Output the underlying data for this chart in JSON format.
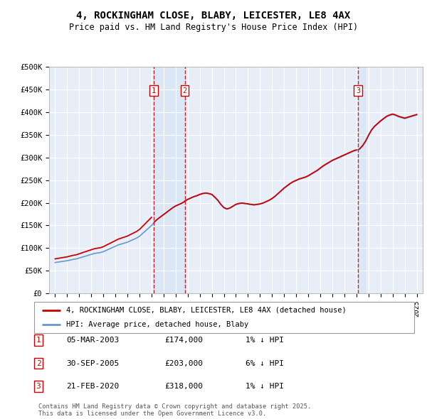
{
  "title": "4, ROCKINGHAM CLOSE, BLABY, LEICESTER, LE8 4AX",
  "subtitle": "Price paid vs. HM Land Registry's House Price Index (HPI)",
  "plot_bg_color": "#e8eef8",
  "ylim": [
    0,
    500000
  ],
  "yticks": [
    0,
    50000,
    100000,
    150000,
    200000,
    250000,
    300000,
    350000,
    400000,
    450000,
    500000
  ],
  "ytick_labels": [
    "£0",
    "£50K",
    "£100K",
    "£150K",
    "£200K",
    "£250K",
    "£300K",
    "£350K",
    "£400K",
    "£450K",
    "£500K"
  ],
  "xlim_start": 1994.5,
  "xlim_end": 2025.5,
  "sale_dates": [
    2003.17,
    2005.75,
    2020.13
  ],
  "sale_prices": [
    174000,
    203000,
    318000
  ],
  "sale_labels": [
    "1",
    "2",
    "3"
  ],
  "sale_info": [
    {
      "num": "1",
      "date": "05-MAR-2003",
      "price": "£174,000",
      "hpi": "1% ↓ HPI"
    },
    {
      "num": "2",
      "date": "30-SEP-2005",
      "price": "£203,000",
      "hpi": "6% ↓ HPI"
    },
    {
      "num": "3",
      "date": "21-FEB-2020",
      "price": "£318,000",
      "hpi": "1% ↓ HPI"
    }
  ],
  "red_line_color": "#cc0000",
  "blue_line_color": "#6699cc",
  "grid_color": "#ffffff",
  "dashed_line_color": "#cc0000",
  "legend_label_red": "4, ROCKINGHAM CLOSE, BLABY, LEICESTER, LE8 4AX (detached house)",
  "legend_label_blue": "HPI: Average price, detached house, Blaby",
  "footnote": "Contains HM Land Registry data © Crown copyright and database right 2025.\nThis data is licensed under the Open Government Licence v3.0.",
  "hpi_years": [
    1995,
    1995.25,
    1995.5,
    1995.75,
    1996,
    1996.25,
    1996.5,
    1996.75,
    1997,
    1997.25,
    1997.5,
    1997.75,
    1998,
    1998.25,
    1998.5,
    1998.75,
    1999,
    1999.25,
    1999.5,
    1999.75,
    2000,
    2000.25,
    2000.5,
    2000.75,
    2001,
    2001.25,
    2001.5,
    2001.75,
    2002,
    2002.25,
    2002.5,
    2002.75,
    2003,
    2003.25,
    2003.5,
    2003.75,
    2004,
    2004.25,
    2004.5,
    2004.75,
    2005,
    2005.25,
    2005.5,
    2005.75,
    2006,
    2006.25,
    2006.5,
    2006.75,
    2007,
    2007.25,
    2007.5,
    2007.75,
    2008,
    2008.25,
    2008.5,
    2008.75,
    2009,
    2009.25,
    2009.5,
    2009.75,
    2010,
    2010.25,
    2010.5,
    2010.75,
    2011,
    2011.25,
    2011.5,
    2011.75,
    2012,
    2012.25,
    2012.5,
    2012.75,
    2013,
    2013.25,
    2013.5,
    2013.75,
    2014,
    2014.25,
    2014.5,
    2014.75,
    2015,
    2015.25,
    2015.5,
    2015.75,
    2016,
    2016.25,
    2016.5,
    2016.75,
    2017,
    2017.25,
    2017.5,
    2017.75,
    2018,
    2018.25,
    2018.5,
    2018.75,
    2019,
    2019.25,
    2019.5,
    2019.75,
    2020,
    2020.25,
    2020.5,
    2020.75,
    2021,
    2021.25,
    2021.5,
    2021.75,
    2022,
    2022.25,
    2022.5,
    2022.75,
    2023,
    2023.25,
    2023.5,
    2023.75,
    2024,
    2024.25,
    2024.5,
    2024.75,
    2025
  ],
  "hpi_values": [
    68000,
    69000,
    70000,
    71000,
    72000,
    73500,
    75000,
    76000,
    78000,
    80000,
    82000,
    84000,
    86000,
    88000,
    89000,
    90000,
    92000,
    95000,
    98000,
    101000,
    104000,
    107000,
    109000,
    111000,
    113000,
    116000,
    119000,
    122000,
    126000,
    132000,
    138000,
    144000,
    150000,
    158000,
    164000,
    169000,
    174000,
    179000,
    184000,
    189000,
    193000,
    196000,
    199000,
    203000,
    207000,
    210000,
    213000,
    215000,
    218000,
    220000,
    221000,
    220000,
    218000,
    212000,
    205000,
    196000,
    189000,
    186000,
    188000,
    192000,
    196000,
    198000,
    199000,
    198000,
    197000,
    196000,
    195000,
    196000,
    197000,
    199000,
    202000,
    205000,
    209000,
    214000,
    220000,
    226000,
    232000,
    237000,
    242000,
    246000,
    249000,
    252000,
    254000,
    256000,
    259000,
    263000,
    267000,
    271000,
    276000,
    281000,
    285000,
    289000,
    293000,
    296000,
    299000,
    302000,
    305000,
    308000,
    311000,
    314000,
    316000,
    318000,
    325000,
    335000,
    348000,
    360000,
    368000,
    374000,
    380000,
    385000,
    390000,
    393000,
    395000,
    393000,
    390000,
    388000,
    386000,
    388000,
    390000,
    392000,
    394000
  ]
}
